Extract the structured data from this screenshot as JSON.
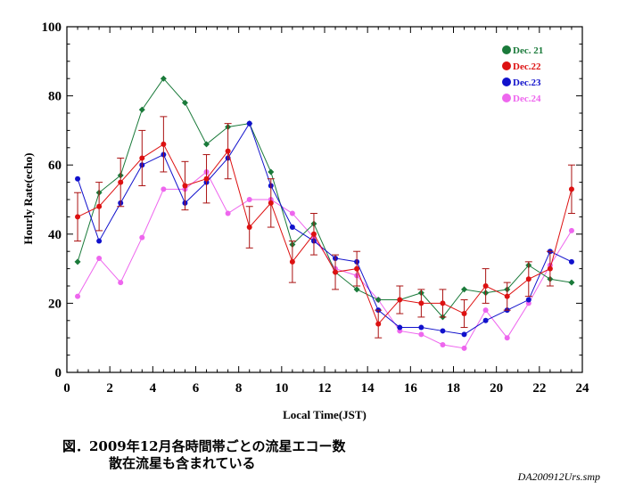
{
  "chart_data": {
    "type": "line",
    "xlabel": "Local Time(JST)",
    "ylabel": "Hourly Rate(echo)",
    "xlim": [
      0,
      24
    ],
    "ylim": [
      0,
      100
    ],
    "xticks": [
      0,
      2,
      4,
      6,
      8,
      10,
      12,
      14,
      16,
      18,
      20,
      22,
      24
    ],
    "yticks": [
      0,
      20,
      40,
      60,
      80,
      100
    ],
    "grid": false,
    "legend_position": "top-right",
    "x": [
      0.5,
      1.5,
      2.5,
      3.5,
      4.5,
      5.5,
      6.5,
      7.5,
      8.5,
      9.5,
      10.5,
      11.5,
      12.5,
      13.5,
      14.5,
      15.5,
      16.5,
      17.5,
      18.5,
      19.5,
      20.5,
      21.5,
      22.5,
      23.5
    ],
    "series": [
      {
        "name": "Dec. 21",
        "color": "#1a7a3a",
        "values": [
          32,
          52,
          57,
          76,
          85,
          78,
          66,
          71,
          72,
          58,
          37,
          43,
          29,
          24,
          21,
          21,
          23,
          16,
          24,
          23,
          24,
          31,
          27,
          26
        ]
      },
      {
        "name": "Dec.22",
        "color": "#dd1111",
        "values": [
          45,
          48,
          55,
          62,
          66,
          54,
          56,
          64,
          42,
          49,
          32,
          40,
          29,
          30,
          14,
          21,
          20,
          20,
          17,
          25,
          22,
          27,
          30,
          53
        ],
        "errors": [
          7,
          7,
          7,
          8,
          8,
          7,
          7,
          8,
          6,
          7,
          6,
          6,
          5,
          5,
          4,
          4,
          4,
          4,
          4,
          5,
          4,
          5,
          5,
          7
        ]
      },
      {
        "name": "Dec.23",
        "color": "#1111cc",
        "values": [
          56,
          38,
          49,
          60,
          63,
          49,
          55,
          62,
          72,
          54,
          42,
          38,
          33,
          32,
          18,
          13,
          13,
          12,
          11,
          15,
          18,
          21,
          35,
          32
        ]
      },
      {
        "name": "Dec.24",
        "color": "#ee66ee",
        "values": [
          22,
          33,
          26,
          39,
          53,
          53,
          58,
          46,
          50,
          50,
          46,
          39,
          30,
          28,
          21,
          12,
          11,
          8,
          7,
          18,
          10,
          20,
          31,
          41
        ]
      }
    ]
  },
  "caption": {
    "line1": "図．2009年12月各時間帯ごとの流星エコー数",
    "line2": "散在流星も含まれている"
  },
  "filename": "DA200912Urs.smp"
}
